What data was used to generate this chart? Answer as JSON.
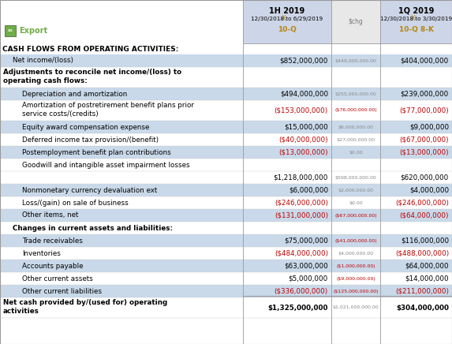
{
  "col1_header_line1": "1H 2019",
  "col1_header_x": "X",
  "col1_header_line2": "12/30/2018 to 6/29/2019",
  "col1_header_line3": "10-Q",
  "col2_header": "$chg",
  "col3_header_line1": "1Q 2019",
  "col3_header_x": "X",
  "col3_header_line2": "12/30/2018 to 3/30/2019",
  "col3_header_line3": "10-Q 8-K",
  "section_title": "CASH FLOWS FROM OPERATING ACTIVITIES:",
  "rows": [
    {
      "label": "Net income/(loss)",
      "indent": 1,
      "col1": "$852,000,000",
      "col2": "$448,000,000.00",
      "col3": "$404,000,000",
      "col1_neg": false,
      "col2_neg": false,
      "col3_neg": false,
      "bold": false,
      "shaded": true,
      "two_line": false,
      "underline": false
    },
    {
      "label": "Adjustments to reconcile net income/(loss) to",
      "label2": "operating cash flows:",
      "indent": 0,
      "col1": "",
      "col2": "",
      "col3": "",
      "col1_neg": false,
      "col2_neg": false,
      "col3_neg": false,
      "bold": true,
      "shaded": false,
      "two_line": true,
      "underline": false
    },
    {
      "label": "Depreciation and amortization",
      "indent": 2,
      "col1": "$494,000,000",
      "col2": "$255,000,000.00",
      "col3": "$239,000,000",
      "col1_neg": false,
      "col2_neg": false,
      "col3_neg": false,
      "bold": false,
      "shaded": true,
      "two_line": false,
      "underline": false
    },
    {
      "label": "Amortization of postretirement benefit plans prior",
      "label2": "service costs/(credits)",
      "indent": 2,
      "col1": "($153,000,000)",
      "col2": "($76,000,000.00)",
      "col3": "($77,000,000)",
      "col1_neg": true,
      "col2_neg": true,
      "col3_neg": true,
      "bold": false,
      "shaded": false,
      "two_line": true,
      "underline": false
    },
    {
      "label": "Equity award compensation expense",
      "indent": 2,
      "col1": "$15,000,000",
      "col2": "$6,000,000.00",
      "col3": "$9,000,000",
      "col1_neg": false,
      "col2_neg": false,
      "col3_neg": false,
      "bold": false,
      "shaded": true,
      "two_line": false,
      "underline": false
    },
    {
      "label": "Deferred income tax provision/(benefit)",
      "indent": 2,
      "col1": "($40,000,000)",
      "col2": "$27,000,000.00",
      "col3": "($67,000,000)",
      "col1_neg": true,
      "col2_neg": false,
      "col3_neg": true,
      "bold": false,
      "shaded": false,
      "two_line": false,
      "underline": false
    },
    {
      "label": "Postemployment benefit plan contributions",
      "indent": 2,
      "col1": "($13,000,000)",
      "col2": "$0.00",
      "col3": "($13,000,000)",
      "col1_neg": true,
      "col2_neg": false,
      "col3_neg": true,
      "bold": false,
      "shaded": true,
      "two_line": false,
      "underline": false
    },
    {
      "label": "Goodwill and intangible asset impairment losses",
      "indent": 2,
      "col1": "",
      "col2": "",
      "col3": "",
      "col1_neg": false,
      "col2_neg": false,
      "col3_neg": false,
      "bold": false,
      "shaded": false,
      "two_line": false,
      "underline": false
    },
    {
      "label": "",
      "indent": 2,
      "col1": "$1,218,000,000",
      "col2": "$598,000,000.00",
      "col3": "$620,000,000",
      "col1_neg": false,
      "col2_neg": false,
      "col3_neg": false,
      "bold": false,
      "shaded": false,
      "two_line": false,
      "underline": false
    },
    {
      "label": "Nonmonetary currency devaluation ext",
      "indent": 2,
      "col1": "$6,000,000",
      "col2": "$2,000,000.00",
      "col3": "$4,000,000",
      "col1_neg": false,
      "col2_neg": false,
      "col3_neg": false,
      "bold": false,
      "shaded": true,
      "two_line": false,
      "underline": false
    },
    {
      "label": "Loss/(gain) on sale of business",
      "indent": 2,
      "col1": "($246,000,000)",
      "col2": "$0.00",
      "col3": "($246,000,000)",
      "col1_neg": true,
      "col2_neg": false,
      "col3_neg": true,
      "bold": false,
      "shaded": false,
      "two_line": false,
      "underline": false
    },
    {
      "label": "Other items, net",
      "indent": 2,
      "col1": "($131,000,000)",
      "col2": "($67,000,000.00)",
      "col3": "($64,000,000)",
      "col1_neg": true,
      "col2_neg": true,
      "col3_neg": true,
      "bold": false,
      "shaded": true,
      "two_line": false,
      "underline": false
    },
    {
      "label": "Changes in current assets and liabilities:",
      "indent": 1,
      "col1": "",
      "col2": "",
      "col3": "",
      "col1_neg": false,
      "col2_neg": false,
      "col3_neg": false,
      "bold": true,
      "shaded": false,
      "two_line": false,
      "underline": false
    },
    {
      "label": "Trade receivables",
      "indent": 2,
      "col1": "$75,000,000",
      "col2": "($41,000,000.00)",
      "col3": "$116,000,000",
      "col1_neg": false,
      "col2_neg": true,
      "col3_neg": false,
      "bold": false,
      "shaded": true,
      "two_line": false,
      "underline": false
    },
    {
      "label": "Inventories",
      "indent": 2,
      "col1": "($484,000,000)",
      "col2": "$4,000,000.00",
      "col3": "($488,000,000)",
      "col1_neg": true,
      "col2_neg": false,
      "col3_neg": true,
      "bold": false,
      "shaded": false,
      "two_line": false,
      "underline": false
    },
    {
      "label": "Accounts payable",
      "indent": 2,
      "col1": "$63,000,000",
      "col2": "($1,000,000.00)",
      "col3": "$64,000,000",
      "col1_neg": false,
      "col2_neg": true,
      "col3_neg": false,
      "bold": false,
      "shaded": true,
      "two_line": false,
      "underline": false
    },
    {
      "label": "Other current assets",
      "indent": 2,
      "col1": "$5,000,000",
      "col2": "($9,000,000.00)",
      "col3": "$14,000,000",
      "col1_neg": false,
      "col2_neg": true,
      "col3_neg": false,
      "bold": false,
      "shaded": false,
      "two_line": false,
      "underline": false
    },
    {
      "label": "Other current liabilities",
      "indent": 2,
      "col1": "($336,000,000)",
      "col2": "($125,000,000.00)",
      "col3": "($211,000,000)",
      "col1_neg": true,
      "col2_neg": true,
      "col3_neg": true,
      "bold": false,
      "shaded": true,
      "two_line": false,
      "underline": true
    },
    {
      "label": "Net cash provided by/(used for) operating",
      "label2": "activities",
      "indent": 0,
      "col1": "$1,325,000,000",
      "col2": "$1,021,000,000.00",
      "col3": "$304,000,000",
      "col1_neg": false,
      "col2_neg": false,
      "col3_neg": false,
      "bold": true,
      "shaded": false,
      "two_line": true,
      "underline": false
    }
  ],
  "colors": {
    "header_bg": "#cdd5e8",
    "shaded_bg": "#c9d9ea",
    "white_bg": "#ffffff",
    "border_dark": "#999999",
    "border_light": "#cccccc",
    "neg_color": "#c00000",
    "pos_color": "#000000",
    "col2_color": "#888888",
    "col2_neg_color": "#c00000",
    "gold_color": "#b8860b",
    "export_green": "#70ad47",
    "export_green_dark": "#375623"
  },
  "figw": 5.73,
  "figh": 4.36,
  "dpi": 100
}
